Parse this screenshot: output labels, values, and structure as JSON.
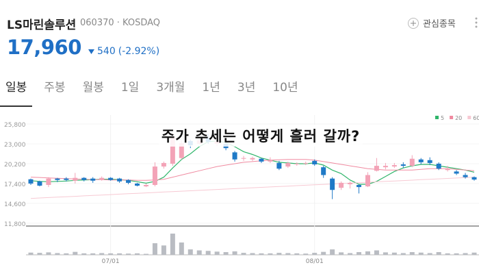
{
  "header": {
    "name": "LS마린솔루션",
    "code_market": "060370 · KOSDAQ",
    "watch": "관심종목",
    "price": "17,960",
    "change": "540",
    "change_pct": "(-2.92%)"
  },
  "tabs": [
    "일봉",
    "주봉",
    "월봉",
    "1일",
    "3개월",
    "1년",
    "3년",
    "10년"
  ],
  "overlay_text": "주가 추세는 어떻게 흘러 갈까?",
  "chart_data": {
    "type": "candlestick",
    "up_color": "#f3a3b7",
    "down_color": "#1f7ac7",
    "categories": [
      null,
      null,
      null,
      null,
      null,
      null,
      null,
      null,
      null,
      "07/01",
      null,
      null,
      null,
      null,
      null,
      null,
      null,
      null,
      null,
      null,
      null,
      null,
      null,
      null,
      null,
      null,
      null,
      null,
      null,
      null,
      null,
      null,
      "08/01",
      null,
      null,
      null,
      null,
      null,
      null,
      null,
      null,
      null,
      null,
      null,
      null,
      null,
      null,
      null,
      null,
      null,
      null
    ],
    "open": [
      18000,
      17700,
      17200,
      18100,
      18100,
      17800,
      18200,
      18100,
      17900,
      18200,
      18100,
      17900,
      17400,
      17000,
      17200,
      19800,
      20200,
      21000,
      23400,
      23000,
      23800,
      23000,
      23000,
      21800,
      20900,
      20800,
      20900,
      20500,
      20300,
      19800,
      20100,
      20200,
      20600,
      19700,
      18100,
      16800,
      17300,
      17200,
      17000,
      19200,
      19700,
      19800,
      20100,
      19900,
      20800,
      20700,
      20200,
      19300,
      19100,
      18600,
      18300
    ],
    "high": [
      18100,
      17800,
      18300,
      18200,
      18300,
      18900,
      18300,
      18300,
      18400,
      18300,
      18200,
      18000,
      17500,
      17400,
      20400,
      20500,
      24600,
      23500,
      23600,
      24000,
      24400,
      23700,
      23200,
      22000,
      21300,
      21200,
      21000,
      21100,
      20600,
      20500,
      20400,
      20500,
      20800,
      19900,
      18300,
      17700,
      17700,
      17300,
      19000,
      21000,
      20300,
      20300,
      20400,
      21400,
      21000,
      21100,
      20400,
      19900,
      19300,
      18900,
      18400
    ],
    "low": [
      17200,
      17000,
      16900,
      17600,
      17700,
      17400,
      17700,
      17500,
      17800,
      17800,
      17500,
      17300,
      17000,
      16900,
      17000,
      19500,
      19900,
      20800,
      22400,
      22900,
      23000,
      22700,
      22100,
      20500,
      20600,
      20600,
      20300,
      20300,
      19300,
      19600,
      19900,
      20000,
      19900,
      18200,
      15200,
      16500,
      16700,
      16000,
      16900,
      19100,
      19400,
      19600,
      19600,
      19700,
      20100,
      20000,
      19300,
      19100,
      18600,
      18100,
      17800
    ],
    "close": [
      17400,
      17100,
      18100,
      17900,
      17900,
      18200,
      17900,
      17800,
      18200,
      17900,
      17700,
      17500,
      17100,
      17200,
      19800,
      20300,
      24000,
      23100,
      22800,
      23500,
      23300,
      23400,
      22400,
      20800,
      21000,
      21000,
      20500,
      20700,
      19500,
      20300,
      20200,
      20300,
      20100,
      18600,
      16500,
      17500,
      17500,
      16900,
      18600,
      19900,
      19900,
      20000,
      19900,
      20900,
      20400,
      20300,
      19500,
      19500,
      18800,
      18300,
      17960
    ],
    "ylim": [
      11400,
      27060
    ],
    "yticks": [
      {
        "value": 25800,
        "label": "25,800"
      },
      {
        "value": 23000,
        "label": "23,000"
      },
      {
        "value": 20200,
        "label": "20,200"
      },
      {
        "value": 17400,
        "label": "17,400"
      },
      {
        "value": 14600,
        "label": "14,600"
      },
      {
        "value": 11800,
        "label": "11,800"
      }
    ],
    "series": [
      {
        "name": "5",
        "color": "#2fb56a",
        "values": [
          17800,
          17700,
          17650,
          17700,
          17750,
          17850,
          17900,
          17950,
          18000,
          18000,
          17950,
          17850,
          17650,
          17450,
          17700,
          18300,
          19600,
          20800,
          21600,
          22600,
          23300,
          23400,
          23200,
          22600,
          21900,
          21500,
          21000,
          20700,
          20400,
          20300,
          20200,
          20200,
          20300,
          20000,
          19300,
          18800,
          17900,
          17300,
          17300,
          17700,
          18400,
          19100,
          19600,
          19900,
          20100,
          20100,
          19900,
          19700,
          19500,
          19300,
          19000
        ]
      },
      {
        "name": "20",
        "color": "#f08aa0",
        "values": [
          18300,
          18250,
          18200,
          18150,
          18100,
          18050,
          18000,
          17950,
          17950,
          17900,
          17900,
          17900,
          17850,
          17850,
          17900,
          18000,
          18300,
          18600,
          18900,
          19200,
          19500,
          19800,
          20000,
          20200,
          20400,
          20500,
          20600,
          20700,
          20750,
          20800,
          20800,
          20800,
          20700,
          20500,
          20300,
          20100,
          19900,
          19700,
          19500,
          19400,
          19300,
          19300,
          19300,
          19300,
          19400,
          19500,
          19500,
          19500,
          19400,
          19300,
          19200
        ]
      },
      {
        "name": "60",
        "color": "#f7c9d3",
        "values": [
          15300,
          15360,
          15420,
          15480,
          15540,
          15600,
          15660,
          15720,
          15780,
          15840,
          15900,
          15960,
          16020,
          16080,
          16140,
          16200,
          16260,
          16320,
          16380,
          16440,
          16500,
          16560,
          16620,
          16680,
          16740,
          16800,
          16860,
          16920,
          16980,
          17040,
          17100,
          17160,
          17220,
          17280,
          17340,
          17400,
          17460,
          17520,
          17580,
          17640,
          17700,
          17760,
          17820,
          17880,
          17940,
          18000,
          18060,
          18120,
          18180,
          18240,
          18300
        ]
      }
    ],
    "volume": [
      90000,
      80000,
      100000,
      70000,
      60000,
      120000,
      60000,
      60000,
      70000,
      60000,
      60000,
      50000,
      60000,
      40000,
      470000,
      380000,
      860000,
      500000,
      220000,
      180000,
      160000,
      130000,
      110000,
      140000,
      80000,
      70000,
      60000,
      60000,
      80000,
      70000,
      60000,
      50000,
      80000,
      120000,
      220000,
      100000,
      70000,
      110000,
      140000,
      180000,
      100000,
      90000,
      70000,
      110000,
      90000,
      70000,
      110000,
      60000,
      60000,
      70000,
      90000
    ],
    "volume_color": "#b9bcc2",
    "volume_ylim": [
      0,
      1000000
    ]
  }
}
